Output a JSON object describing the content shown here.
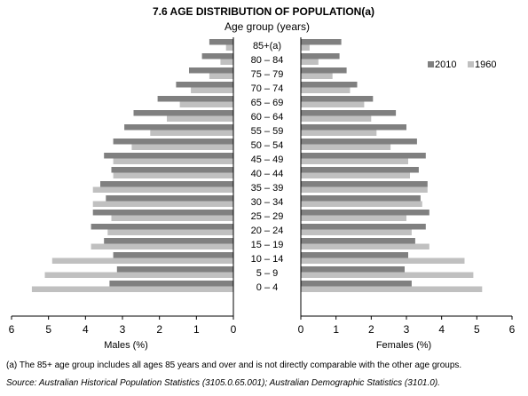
{
  "chart_data": {
    "type": "bar",
    "orientation": "horizontal",
    "title": "7.6  AGE DISTRIBUTION OF POPULATION(a)",
    "subtitle": "Age group (years)",
    "categories": [
      "85+(a)",
      "80 – 84",
      "75 – 79",
      "70 – 74",
      "65 – 69",
      "60 – 64",
      "55 – 59",
      "50 – 54",
      "45 – 49",
      "40 – 44",
      "35 – 39",
      "30 – 34",
      "25 – 29",
      "20 – 24",
      "15 – 19",
      "10 – 14",
      "5 – 9",
      "0 – 4"
    ],
    "panels": [
      {
        "side": "left",
        "xlabel": "Males (%)",
        "xlim": [
          6,
          0
        ],
        "ticks": [
          "6",
          "5",
          "4",
          "3",
          "2",
          "1",
          "0"
        ],
        "series": [
          {
            "name": "2010",
            "color": "#808080",
            "values": [
              0.65,
              0.85,
              1.2,
              1.55,
              2.05,
              2.7,
              2.95,
              3.25,
              3.5,
              3.3,
              3.6,
              3.45,
              3.8,
              3.85,
              3.5,
              3.25,
              3.15,
              3.35
            ]
          },
          {
            "name": "1960",
            "color": "#c0c0c0",
            "values": [
              0.2,
              0.35,
              0.65,
              1.15,
              1.45,
              1.8,
              2.25,
              2.75,
              3.25,
              3.25,
              3.8,
              3.8,
              3.3,
              3.4,
              3.85,
              4.9,
              5.1,
              5.45
            ]
          }
        ]
      },
      {
        "side": "right",
        "xlabel": "Females (%)",
        "xlim": [
          0,
          6
        ],
        "ticks": [
          "0",
          "1",
          "2",
          "3",
          "4",
          "5",
          "6"
        ],
        "series": [
          {
            "name": "2010",
            "color": "#808080",
            "values": [
              1.15,
              1.1,
              1.3,
              1.6,
              2.05,
              2.7,
              3.0,
              3.3,
              3.55,
              3.35,
              3.6,
              3.4,
              3.65,
              3.55,
              3.25,
              3.05,
              2.95,
              3.15
            ]
          },
          {
            "name": "1960",
            "color": "#c0c0c0",
            "values": [
              0.25,
              0.5,
              0.9,
              1.4,
              1.8,
              2.0,
              2.15,
              2.55,
              3.05,
              3.1,
              3.6,
              3.45,
              3.0,
              3.15,
              3.65,
              4.65,
              4.9,
              5.15
            ]
          }
        ]
      }
    ],
    "legend": {
      "position": "top-right",
      "items": [
        "2010",
        "1960"
      ]
    },
    "grid": false
  },
  "footnote": "(a) The 85+ age group includes all ages 85 years and over and is not directly comparable with the other age groups.",
  "source": "Source: Australian Historical Population Statistics (3105.0.65.001); Australian Demographic Statistics (3101.0)."
}
